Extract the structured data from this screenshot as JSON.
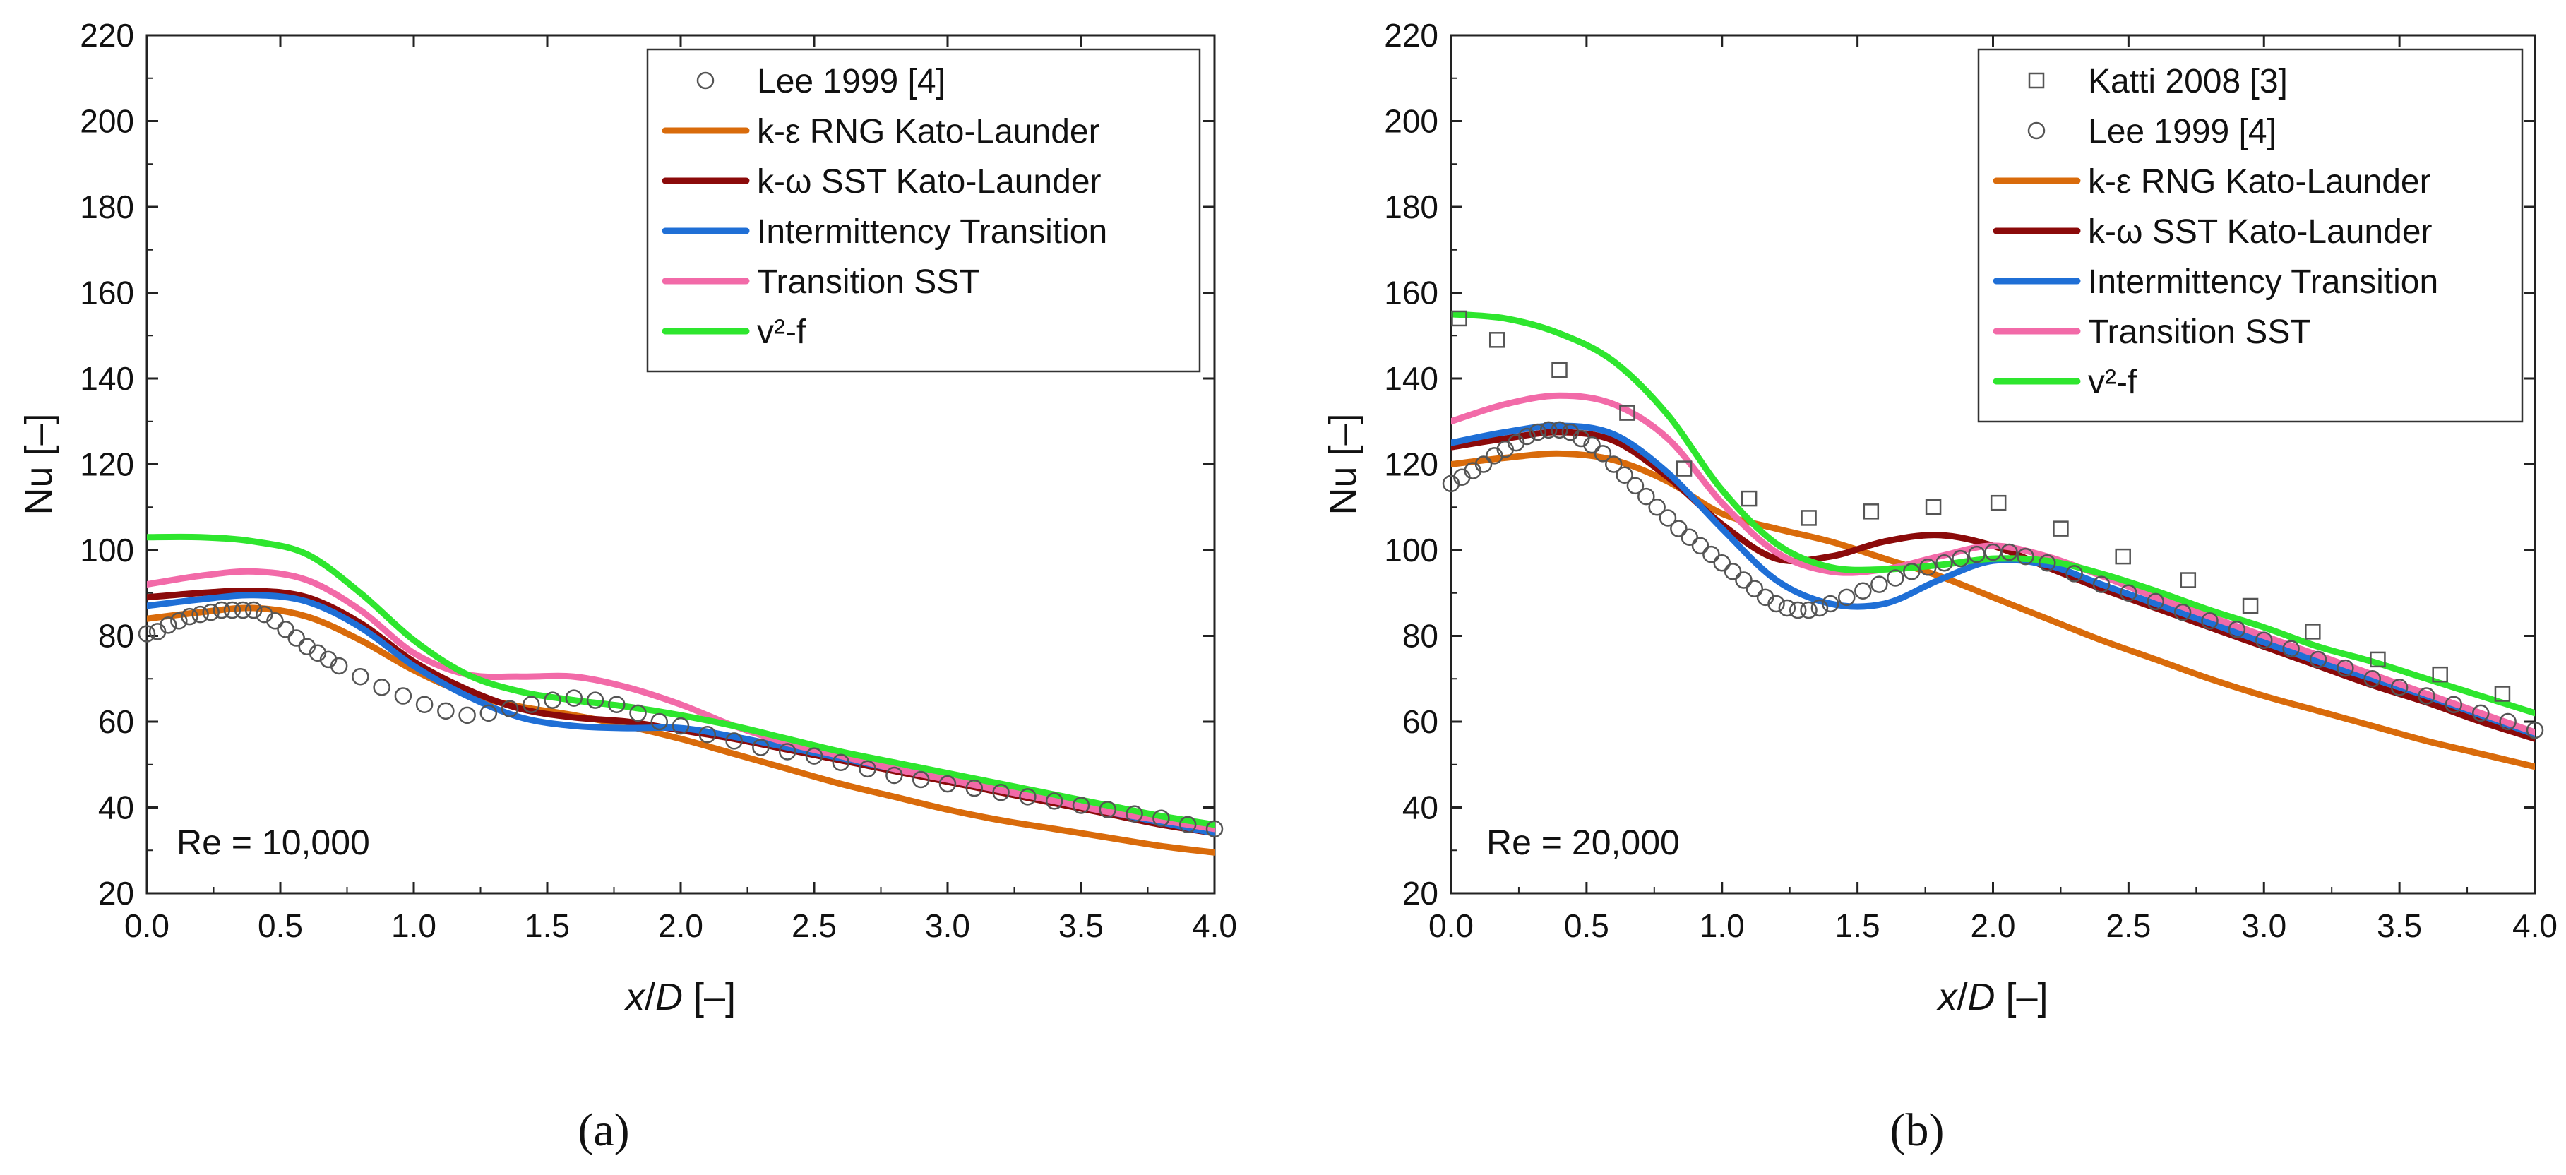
{
  "figure": {
    "panel_labels": [
      "(a)",
      "(b)"
    ]
  },
  "chart_data": [
    {
      "type": "line",
      "title": "",
      "annotation": "Re = 10,000",
      "xlabel_parts": [
        "x",
        "/",
        "D",
        " [–]"
      ],
      "ylabel": "Nu [–]",
      "xlim": [
        0,
        4
      ],
      "ylim": [
        20,
        220
      ],
      "xticks": [
        "0.0",
        "0.5",
        "1.0",
        "1.5",
        "2.0",
        "2.5",
        "3.0",
        "3.5",
        "4.0"
      ],
      "yticks": [
        "20",
        "40",
        "60",
        "80",
        "100",
        "120",
        "140",
        "160",
        "180",
        "200",
        "220"
      ],
      "legend_position": "top-right",
      "series": [
        {
          "name": "Lee 1999 [4]",
          "kind": "marker",
          "marker": "circle",
          "color": "#555555",
          "x": [
            0.0,
            0.04,
            0.08,
            0.12,
            0.16,
            0.2,
            0.24,
            0.28,
            0.32,
            0.36,
            0.4,
            0.44,
            0.48,
            0.52,
            0.56,
            0.6,
            0.64,
            0.68,
            0.72,
            0.8,
            0.88,
            0.96,
            1.04,
            1.12,
            1.2,
            1.28,
            1.36,
            1.44,
            1.52,
            1.6,
            1.68,
            1.76,
            1.84,
            1.92,
            2.0,
            2.1,
            2.2,
            2.3,
            2.4,
            2.5,
            2.6,
            2.7,
            2.8,
            2.9,
            3.0,
            3.1,
            3.2,
            3.3,
            3.4,
            3.5,
            3.6,
            3.7,
            3.8,
            3.9,
            4.0
          ],
          "y": [
            80.5,
            81,
            82.5,
            83.5,
            84.5,
            85,
            85.5,
            86,
            86,
            86,
            86,
            85,
            83.5,
            81.5,
            79.5,
            77.5,
            76,
            74.5,
            73,
            70.5,
            68,
            66,
            64,
            62.5,
            61.5,
            62,
            63,
            64,
            65,
            65.5,
            65,
            64,
            62,
            60,
            59,
            57,
            55.5,
            54,
            53,
            52,
            50.5,
            49,
            47.5,
            46.5,
            45.5,
            44.5,
            43.5,
            42.5,
            41.5,
            40.5,
            39.5,
            38.5,
            37.5,
            36,
            35
          ]
        },
        {
          "name": "k-ε RNG Kato-Launder",
          "kind": "line",
          "color": "#d96b0b",
          "x": [
            0,
            0.2,
            0.4,
            0.6,
            0.8,
            1.0,
            1.2,
            1.4,
            1.6,
            1.8,
            2.0,
            2.2,
            2.4,
            2.6,
            2.8,
            3.0,
            3.2,
            3.4,
            3.6,
            3.8,
            4.0
          ],
          "y": [
            84,
            85.5,
            86.5,
            84.5,
            79,
            72,
            66.5,
            63.5,
            61.5,
            59,
            56,
            52.5,
            49,
            45.5,
            42.5,
            39.5,
            37,
            35,
            33,
            31,
            29.5
          ]
        },
        {
          "name": "k-ω SST Kato-Launder",
          "kind": "line",
          "color": "#8b0a0a",
          "x": [
            0,
            0.2,
            0.4,
            0.6,
            0.8,
            1.0,
            1.2,
            1.4,
            1.6,
            1.8,
            2.0,
            2.2,
            2.4,
            2.6,
            2.8,
            3.0,
            3.2,
            3.4,
            3.6,
            3.8,
            4.0
          ],
          "y": [
            89,
            90,
            90.5,
            89,
            83,
            74,
            67.5,
            63,
            61,
            60,
            58,
            56,
            53.5,
            51,
            48.5,
            46,
            43.5,
            41,
            38.5,
            36,
            34
          ]
        },
        {
          "name": "Intermittency Transition",
          "kind": "line",
          "color": "#1f6fd6",
          "x": [
            0,
            0.2,
            0.4,
            0.6,
            0.8,
            1.0,
            1.2,
            1.4,
            1.6,
            1.8,
            2.0,
            2.2,
            2.4,
            2.6,
            2.8,
            3.0,
            3.2,
            3.4,
            3.6,
            3.8,
            4.0
          ],
          "y": [
            87,
            88.5,
            89.5,
            88,
            82,
            73,
            66,
            61,
            59,
            58.5,
            58.5,
            56.5,
            54,
            51.5,
            49,
            46.5,
            44,
            41.5,
            39,
            36.5,
            34
          ]
        },
        {
          "name": "Transition SST",
          "kind": "line",
          "color": "#f26aa8",
          "x": [
            0,
            0.2,
            0.4,
            0.6,
            0.8,
            1.0,
            1.2,
            1.4,
            1.6,
            1.8,
            2.0,
            2.2,
            2.4,
            2.6,
            2.8,
            3.0,
            3.2,
            3.4,
            3.6,
            3.8,
            4.0
          ],
          "y": [
            92,
            94,
            95,
            93,
            86,
            76,
            71,
            70.5,
            70.5,
            68,
            64,
            59,
            55,
            52,
            49,
            46.5,
            44,
            41.5,
            39,
            37,
            35
          ]
        },
        {
          "name": "v²-f",
          "kind": "line",
          "color": "#2ee62e",
          "x": [
            0,
            0.2,
            0.4,
            0.6,
            0.8,
            1.0,
            1.2,
            1.4,
            1.6,
            1.8,
            2.0,
            2.2,
            2.4,
            2.6,
            2.8,
            3.0,
            3.2,
            3.4,
            3.6,
            3.8,
            4.0
          ],
          "y": [
            103,
            103,
            102,
            99,
            90,
            79,
            71,
            67,
            65,
            63.5,
            61.5,
            59,
            56,
            53,
            50.5,
            48,
            45.5,
            43,
            40.5,
            38,
            36
          ]
        }
      ]
    },
    {
      "type": "line",
      "title": "",
      "annotation": "Re = 20,000",
      "xlabel_parts": [
        "x",
        "/",
        "D",
        " [–]"
      ],
      "ylabel": "Nu [–]",
      "xlim": [
        0,
        4
      ],
      "ylim": [
        20,
        220
      ],
      "xticks": [
        "0.0",
        "0.5",
        "1.0",
        "1.5",
        "2.0",
        "2.5",
        "3.0",
        "3.5",
        "4.0"
      ],
      "yticks": [
        "20",
        "40",
        "60",
        "80",
        "100",
        "120",
        "140",
        "160",
        "180",
        "200",
        "220"
      ],
      "legend_position": "top-right",
      "series": [
        {
          "name": "Katti 2008 [3]",
          "kind": "marker",
          "marker": "square",
          "color": "#555555",
          "x": [
            0.03,
            0.17,
            0.4,
            0.65,
            0.86,
            1.1,
            1.32,
            1.55,
            1.78,
            2.02,
            2.25,
            2.48,
            2.72,
            2.95,
            3.18,
            3.42,
            3.65,
            3.88
          ],
          "y": [
            154,
            149,
            142,
            132,
            119,
            112,
            107.5,
            109,
            110,
            111,
            105,
            98.5,
            93,
            87,
            81,
            74.5,
            71,
            66.5
          ]
        },
        {
          "name": "Lee 1999 [4]",
          "kind": "marker",
          "marker": "circle",
          "color": "#555555",
          "x": [
            0.0,
            0.04,
            0.08,
            0.12,
            0.16,
            0.2,
            0.24,
            0.28,
            0.32,
            0.36,
            0.4,
            0.44,
            0.48,
            0.52,
            0.56,
            0.6,
            0.64,
            0.68,
            0.72,
            0.76,
            0.8,
            0.84,
            0.88,
            0.92,
            0.96,
            1.0,
            1.04,
            1.08,
            1.12,
            1.16,
            1.2,
            1.24,
            1.28,
            1.32,
            1.36,
            1.4,
            1.46,
            1.52,
            1.58,
            1.64,
            1.7,
            1.76,
            1.82,
            1.88,
            1.94,
            2.0,
            2.06,
            2.12,
            2.2,
            2.3,
            2.4,
            2.5,
            2.6,
            2.7,
            2.8,
            2.9,
            3.0,
            3.1,
            3.2,
            3.3,
            3.4,
            3.5,
            3.6,
            3.7,
            3.8,
            3.9,
            4.0
          ],
          "y": [
            115.5,
            117,
            118.5,
            120,
            122,
            123.5,
            125,
            126.5,
            127.5,
            128,
            128,
            127.5,
            126,
            124.5,
            122.5,
            120,
            117.5,
            115,
            112.5,
            110,
            107.5,
            105,
            103,
            101,
            99,
            97,
            95,
            93,
            91,
            89,
            87.5,
            86.5,
            86,
            86,
            86.5,
            87.5,
            89,
            90.5,
            92,
            93.5,
            95,
            96,
            97,
            98,
            99,
            99.5,
            99.5,
            98.5,
            97,
            94.5,
            92,
            90,
            88,
            85.5,
            83.5,
            81.5,
            79,
            77,
            74.5,
            72.5,
            70,
            68,
            66,
            64,
            62,
            60,
            58
          ]
        },
        {
          "name": "k-ε RNG Kato-Launder",
          "kind": "line",
          "color": "#d96b0b",
          "x": [
            0,
            0.2,
            0.4,
            0.6,
            0.8,
            1.0,
            1.2,
            1.4,
            1.6,
            1.8,
            2.0,
            2.2,
            2.4,
            2.6,
            2.8,
            3.0,
            3.2,
            3.4,
            3.6,
            3.8,
            4.0
          ],
          "y": [
            120,
            121.5,
            122.5,
            121,
            116,
            108.5,
            105,
            102,
            98,
            94,
            89,
            84,
            79,
            74.5,
            70,
            66,
            62.5,
            59,
            55.5,
            52.5,
            49.5
          ]
        },
        {
          "name": "k-ω SST Kato-Launder",
          "kind": "line",
          "color": "#8b0a0a",
          "x": [
            0,
            0.2,
            0.4,
            0.6,
            0.8,
            1.0,
            1.2,
            1.4,
            1.6,
            1.8,
            2.0,
            2.2,
            2.4,
            2.6,
            2.8,
            3.0,
            3.2,
            3.4,
            3.6,
            3.8,
            4.0
          ],
          "y": [
            124,
            126,
            127.5,
            125.5,
            117,
            106,
            98,
            98.5,
            102,
            103.5,
            101,
            96,
            91,
            86.5,
            82,
            77.5,
            73,
            68.5,
            64.5,
            60,
            56
          ]
        },
        {
          "name": "Intermittency Transition",
          "kind": "line",
          "color": "#1f6fd6",
          "x": [
            0,
            0.2,
            0.4,
            0.6,
            0.8,
            1.0,
            1.2,
            1.4,
            1.6,
            1.8,
            2.0,
            2.2,
            2.4,
            2.6,
            2.8,
            3.0,
            3.2,
            3.4,
            3.6,
            3.8,
            4.0
          ],
          "y": [
            125,
            127.5,
            129,
            127,
            118,
            105,
            93,
            87.5,
            87.5,
            93,
            97.5,
            96.5,
            92,
            87.5,
            83,
            78.5,
            74,
            70,
            66,
            61.5,
            57
          ]
        },
        {
          "name": "Transition SST",
          "kind": "line",
          "color": "#f26aa8",
          "x": [
            0,
            0.2,
            0.4,
            0.6,
            0.8,
            1.0,
            1.2,
            1.4,
            1.6,
            1.8,
            2.0,
            2.2,
            2.4,
            2.6,
            2.8,
            3.0,
            3.2,
            3.4,
            3.6,
            3.8,
            4.0
          ],
          "y": [
            130,
            134,
            136,
            134,
            126,
            111,
            99.5,
            95,
            95.5,
            98.5,
            101,
            98.5,
            94,
            89,
            84.5,
            80,
            75.5,
            71,
            66.5,
            62,
            57.5
          ]
        },
        {
          "name": "v²-f",
          "kind": "line",
          "color": "#2ee62e",
          "x": [
            0,
            0.2,
            0.4,
            0.6,
            0.8,
            1.0,
            1.2,
            1.4,
            1.6,
            1.8,
            2.0,
            2.2,
            2.4,
            2.6,
            2.8,
            3.0,
            3.2,
            3.4,
            3.6,
            3.8,
            4.0
          ],
          "y": [
            155,
            154,
            150.5,
            144,
            131.5,
            114,
            101.5,
            96,
            95.5,
            96.5,
            98,
            97.5,
            94.5,
            90.5,
            86,
            82,
            77.5,
            74,
            70,
            66,
            62
          ]
        }
      ]
    }
  ]
}
